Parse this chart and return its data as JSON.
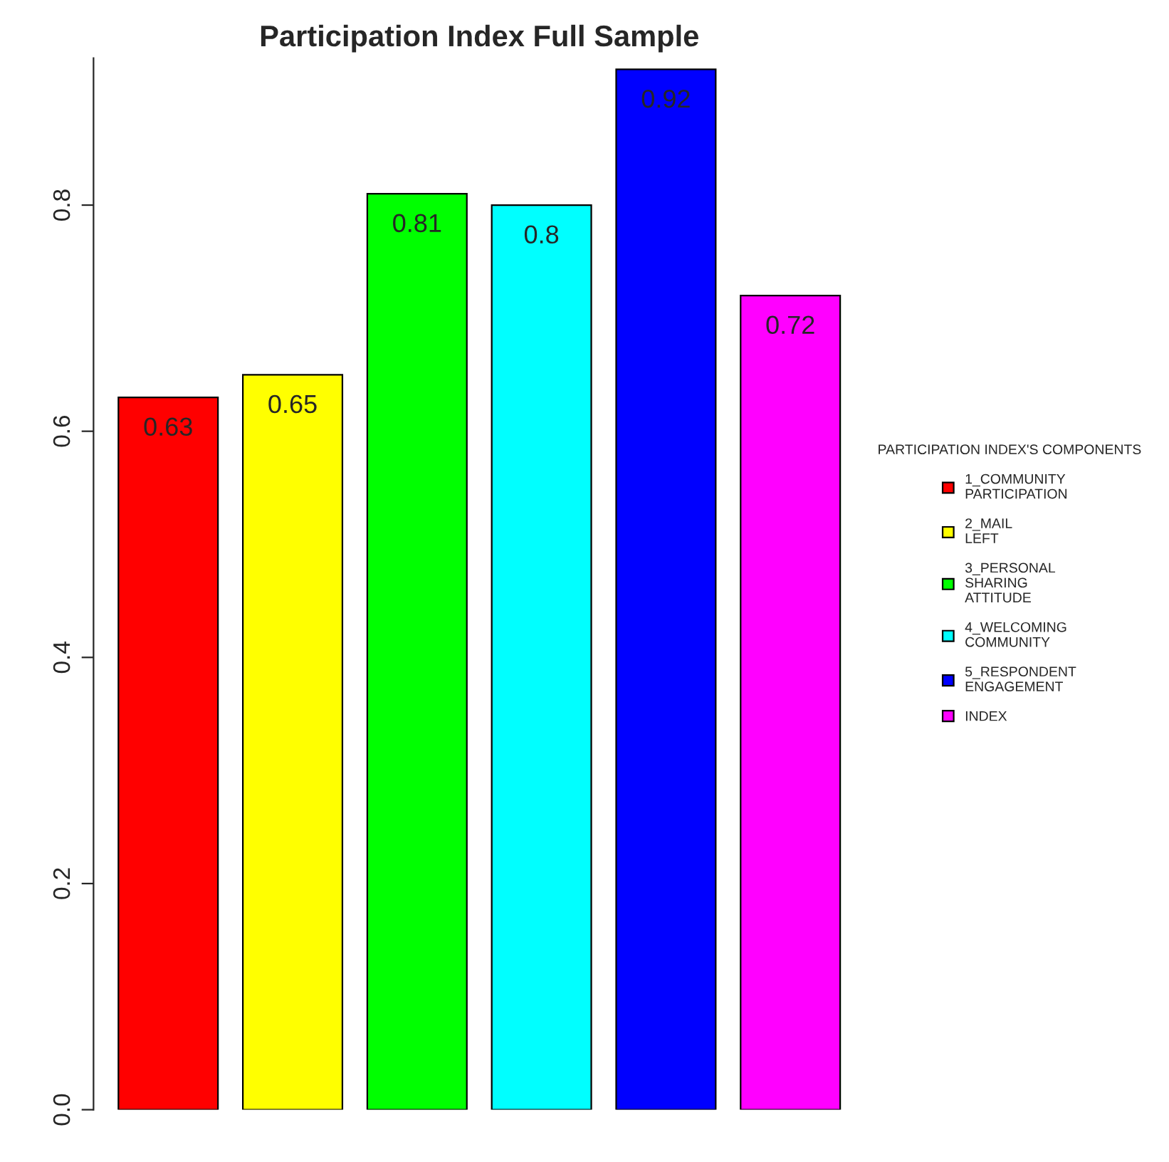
{
  "chart_data": {
    "type": "bar",
    "title": "Participation Index Full Sample",
    "legend_title": "PARTICIPATION INDEX'S COMPONENTS",
    "categories": [
      null,
      null,
      null,
      null,
      null,
      null
    ],
    "series": [
      {
        "name": "1_COMMUNITY\nPARTICIPATION",
        "color": "#ff0000",
        "values": [
          0.63,
          null,
          null,
          null,
          null,
          null
        ]
      },
      {
        "name": "2_MAIL\nLEFT",
        "color": "#ffff00",
        "values": [
          null,
          0.65,
          null,
          null,
          null,
          null
        ]
      },
      {
        "name": "3_PERSONAL\nSHARING\nATTITUDE",
        "color": "#00ff00",
        "values": [
          null,
          null,
          0.81,
          null,
          null,
          null
        ]
      },
      {
        "name": "4_WELCOMING\nCOMMUNITY",
        "color": "#00ffff",
        "values": [
          null,
          null,
          null,
          0.8,
          null,
          null
        ]
      },
      {
        "name": "5_RESPONDENT\nENGAGEMENT",
        "color": "#0000ff",
        "values": [
          null,
          null,
          null,
          null,
          0.92,
          null
        ]
      },
      {
        "name": "INDEX",
        "color": "#ff00ff",
        "values": [
          null,
          null,
          null,
          null,
          null,
          0.72
        ]
      }
    ],
    "stacked": true,
    "ylim": [
      0,
      0.93
    ],
    "yticks": [
      {
        "value": 0,
        "label": "0.0"
      },
      0.2,
      0.4,
      0.6,
      0.8
    ],
    "data_labels": true,
    "grid": false,
    "legend": "right"
  }
}
